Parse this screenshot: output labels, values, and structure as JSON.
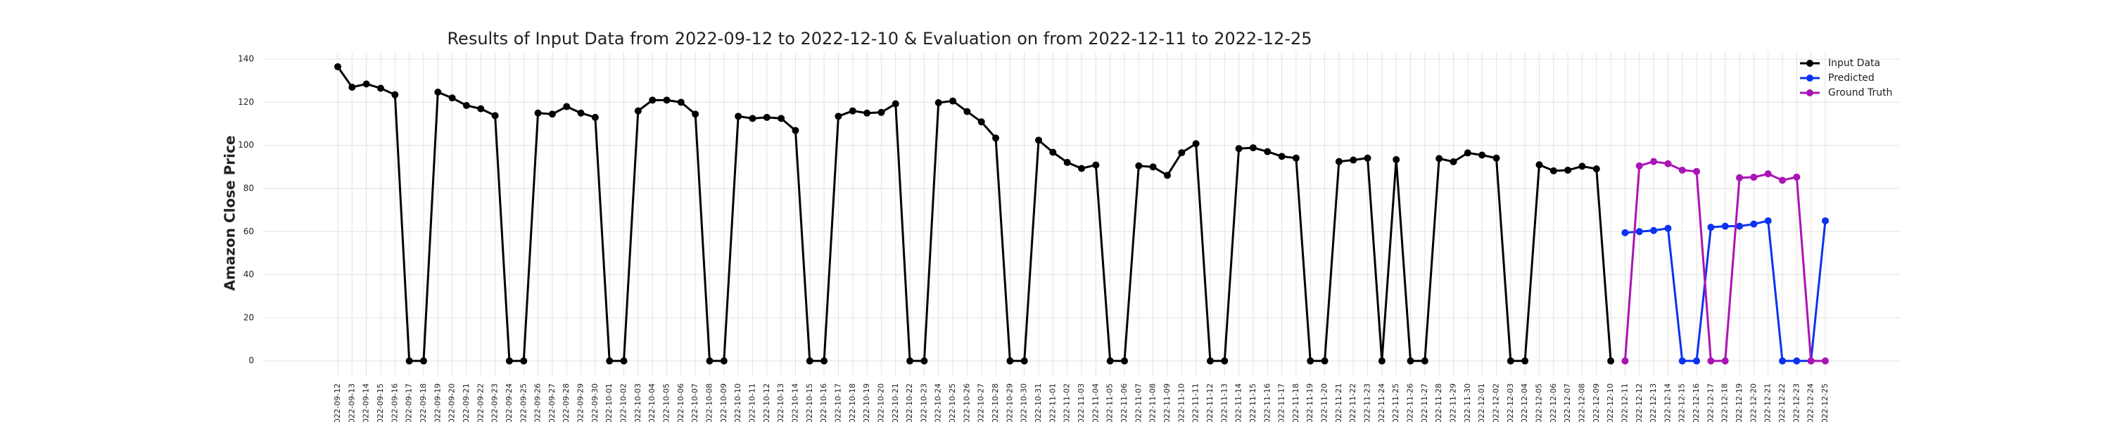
{
  "chart_data": {
    "type": "line",
    "title": "Results of Input Data from 2022-09-12 to 2022-12-10 & Evaluation on from 2022-12-11 to 2022-12-25",
    "y_label": "Amazon Close Price",
    "x": [
      "2022-09-12",
      "2022-09-13",
      "2022-09-14",
      "2022-09-15",
      "2022-09-16",
      "2022-09-17",
      "2022-09-18",
      "2022-09-19",
      "2022-09-20",
      "2022-09-21",
      "2022-09-22",
      "2022-09-23",
      "2022-09-24",
      "2022-09-25",
      "2022-09-26",
      "2022-09-27",
      "2022-09-28",
      "2022-09-29",
      "2022-09-30",
      "2022-10-01",
      "2022-10-02",
      "2022-10-03",
      "2022-10-04",
      "2022-10-05",
      "2022-10-06",
      "2022-10-07",
      "2022-10-08",
      "2022-10-09",
      "2022-10-10",
      "2022-10-11",
      "2022-10-12",
      "2022-10-13",
      "2022-10-14",
      "2022-10-15",
      "2022-10-16",
      "2022-10-17",
      "2022-10-18",
      "2022-10-19",
      "2022-10-20",
      "2022-10-21",
      "2022-10-22",
      "2022-10-23",
      "2022-10-24",
      "2022-10-25",
      "2022-10-26",
      "2022-10-27",
      "2022-10-28",
      "2022-10-29",
      "2022-10-30",
      "2022-10-31",
      "2022-11-01",
      "2022-11-02",
      "2022-11-03",
      "2022-11-04",
      "2022-11-05",
      "2022-11-06",
      "2022-11-07",
      "2022-11-08",
      "2022-11-09",
      "2022-11-10",
      "2022-11-11",
      "2022-11-12",
      "2022-11-13",
      "2022-11-14",
      "2022-11-15",
      "2022-11-16",
      "2022-11-17",
      "2022-11-18",
      "2022-11-19",
      "2022-11-20",
      "2022-11-21",
      "2022-11-22",
      "2022-11-23",
      "2022-11-24",
      "2022-11-25",
      "2022-11-26",
      "2022-11-27",
      "2022-11-28",
      "2022-11-29",
      "2022-11-30",
      "2022-12-01",
      "2022-12-02",
      "2022-12-03",
      "2022-12-04",
      "2022-12-05",
      "2022-12-06",
      "2022-12-07",
      "2022-12-08",
      "2022-12-09",
      "2022-12-10",
      "2022-12-11",
      "2022-12-12",
      "2022-12-13",
      "2022-12-14",
      "2022-12-15",
      "2022-12-16",
      "2022-12-17",
      "2022-12-18",
      "2022-12-19",
      "2022-12-20",
      "2022-12-21",
      "2022-12-22",
      "2022-12-23",
      "2022-12-24",
      "2022-12-25"
    ],
    "series": [
      {
        "name": "Input Data",
        "color": "#000000",
        "values": [
          136.5,
          127,
          128.5,
          126.5,
          123.5,
          0,
          0,
          124.7,
          122,
          118.5,
          117,
          113.8,
          0,
          0,
          115,
          114.5,
          118,
          115,
          113,
          0,
          0,
          116,
          121,
          121,
          120,
          114.5,
          0,
          0,
          113.5,
          112.5,
          113,
          112.5,
          106.9,
          0,
          0,
          113.5,
          116,
          115,
          115.3,
          119.3,
          0,
          0,
          119.8,
          120.6,
          115.7,
          110.9,
          103.4,
          0,
          0,
          102.4,
          96.8,
          92.1,
          89.3,
          90.9,
          0,
          0,
          90.5,
          90,
          86.1,
          96.6,
          100.8,
          0,
          0,
          98.5,
          98.9,
          97.1,
          94.9,
          94.1,
          0,
          0,
          92.5,
          93.2,
          94.1,
          0,
          93.4,
          0,
          0,
          93.9,
          92.4,
          96.5,
          95.5,
          94.1,
          0,
          0,
          91,
          88.2,
          88.5,
          90.3,
          89.1,
          0,
          null,
          null,
          null,
          null,
          null,
          null,
          null,
          null,
          null,
          null,
          null,
          null,
          null,
          null,
          null
        ]
      },
      {
        "name": "Predicted",
        "color": "#0a32f0",
        "values": [
          null,
          null,
          null,
          null,
          null,
          null,
          null,
          null,
          null,
          null,
          null,
          null,
          null,
          null,
          null,
          null,
          null,
          null,
          null,
          null,
          null,
          null,
          null,
          null,
          null,
          null,
          null,
          null,
          null,
          null,
          null,
          null,
          null,
          null,
          null,
          null,
          null,
          null,
          null,
          null,
          null,
          null,
          null,
          null,
          null,
          null,
          null,
          null,
          null,
          null,
          null,
          null,
          null,
          null,
          null,
          null,
          null,
          null,
          null,
          null,
          null,
          null,
          null,
          null,
          null,
          null,
          null,
          null,
          null,
          null,
          null,
          null,
          null,
          null,
          null,
          null,
          null,
          null,
          null,
          null,
          null,
          null,
          null,
          null,
          null,
          null,
          null,
          null,
          null,
          null,
          59.5,
          60,
          60.5,
          61.5,
          0,
          0,
          62,
          62.5,
          62.5,
          63.5,
          65,
          0,
          0,
          0,
          65
        ]
      },
      {
        "name": "Ground Truth",
        "color": "#a914b4",
        "values": [
          null,
          null,
          null,
          null,
          null,
          null,
          null,
          null,
          null,
          null,
          null,
          null,
          null,
          null,
          null,
          null,
          null,
          null,
          null,
          null,
          null,
          null,
          null,
          null,
          null,
          null,
          null,
          null,
          null,
          null,
          null,
          null,
          null,
          null,
          null,
          null,
          null,
          null,
          null,
          null,
          null,
          null,
          null,
          null,
          null,
          null,
          null,
          null,
          null,
          null,
          null,
          null,
          null,
          null,
          null,
          null,
          null,
          null,
          null,
          null,
          null,
          null,
          null,
          null,
          null,
          null,
          null,
          null,
          null,
          null,
          null,
          null,
          null,
          null,
          null,
          null,
          null,
          null,
          null,
          null,
          null,
          null,
          null,
          null,
          null,
          null,
          null,
          null,
          null,
          null,
          0,
          90.5,
          92.5,
          91.5,
          88.5,
          87.9,
          0,
          0,
          85,
          85.2,
          86.8,
          83.8,
          85.3,
          0,
          0
        ]
      }
    ],
    "ylim": [
      -6.8,
      143.3
    ],
    "yticks": [
      0,
      20,
      40,
      60,
      80,
      100,
      120,
      140
    ],
    "grid": true,
    "legend": "upper right"
  }
}
